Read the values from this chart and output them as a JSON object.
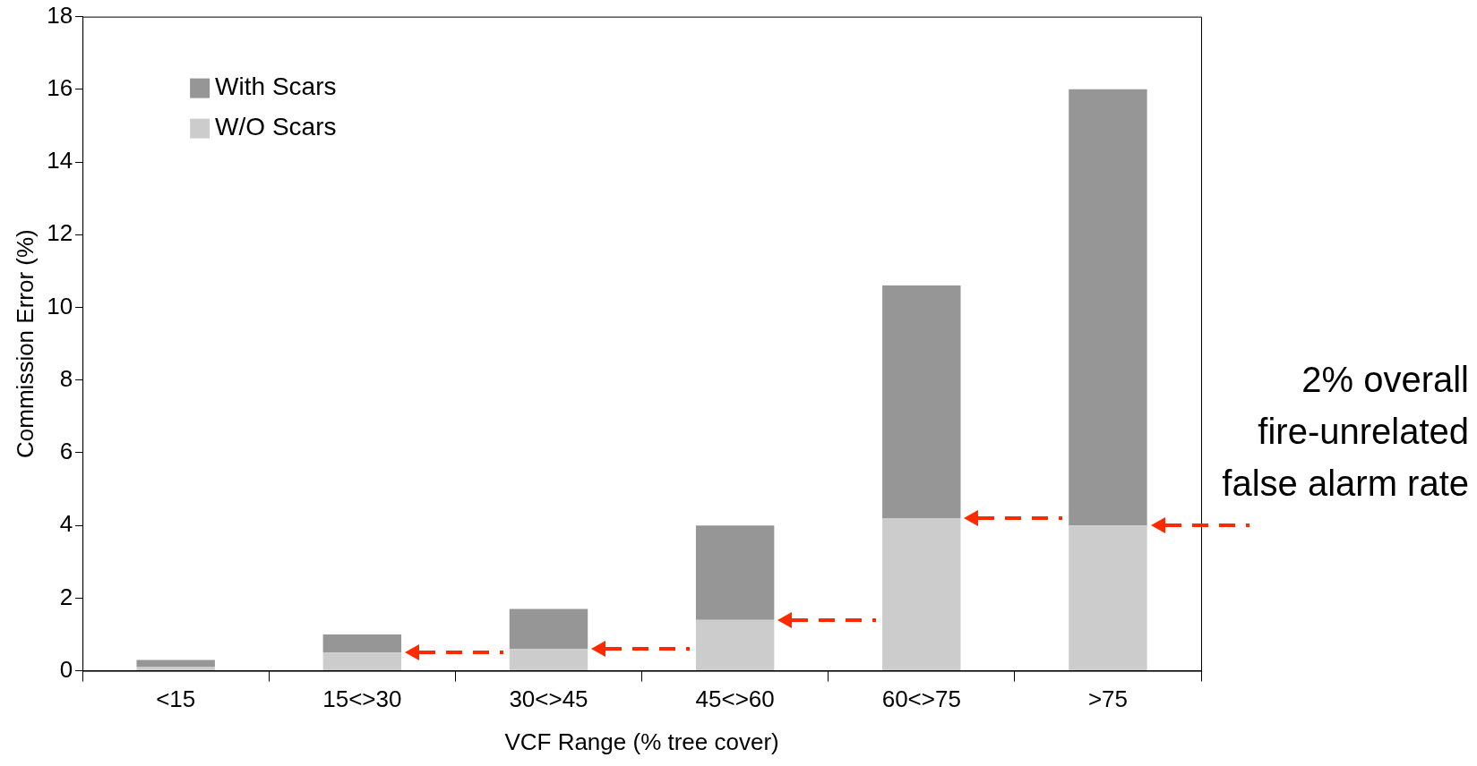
{
  "chart_data": {
    "type": "bar",
    "stacked": true,
    "xlabel": "VCF Range (% tree cover)",
    "ylabel": "Commission Error (%)",
    "categories": [
      "<15",
      "15<>30",
      "30<>45",
      "45<>60",
      "60<>75",
      ">75"
    ],
    "series": [
      {
        "name": "W/O Scars",
        "color": "#cccccc",
        "values": [
          0.1,
          0.5,
          0.6,
          1.4,
          4.2,
          4.0
        ]
      },
      {
        "name": "With Scars",
        "color": "#969696",
        "values": [
          0.2,
          0.5,
          1.1,
          2.6,
          6.4,
          12.0
        ]
      }
    ],
    "ylim": [
      0,
      18
    ],
    "yticks": [
      0,
      2,
      4,
      6,
      8,
      10,
      12,
      14,
      16,
      18
    ],
    "grid": false,
    "legend": "top left",
    "annotations": [
      "2% overall fire-unrelated false alarm rate"
    ]
  }
}
